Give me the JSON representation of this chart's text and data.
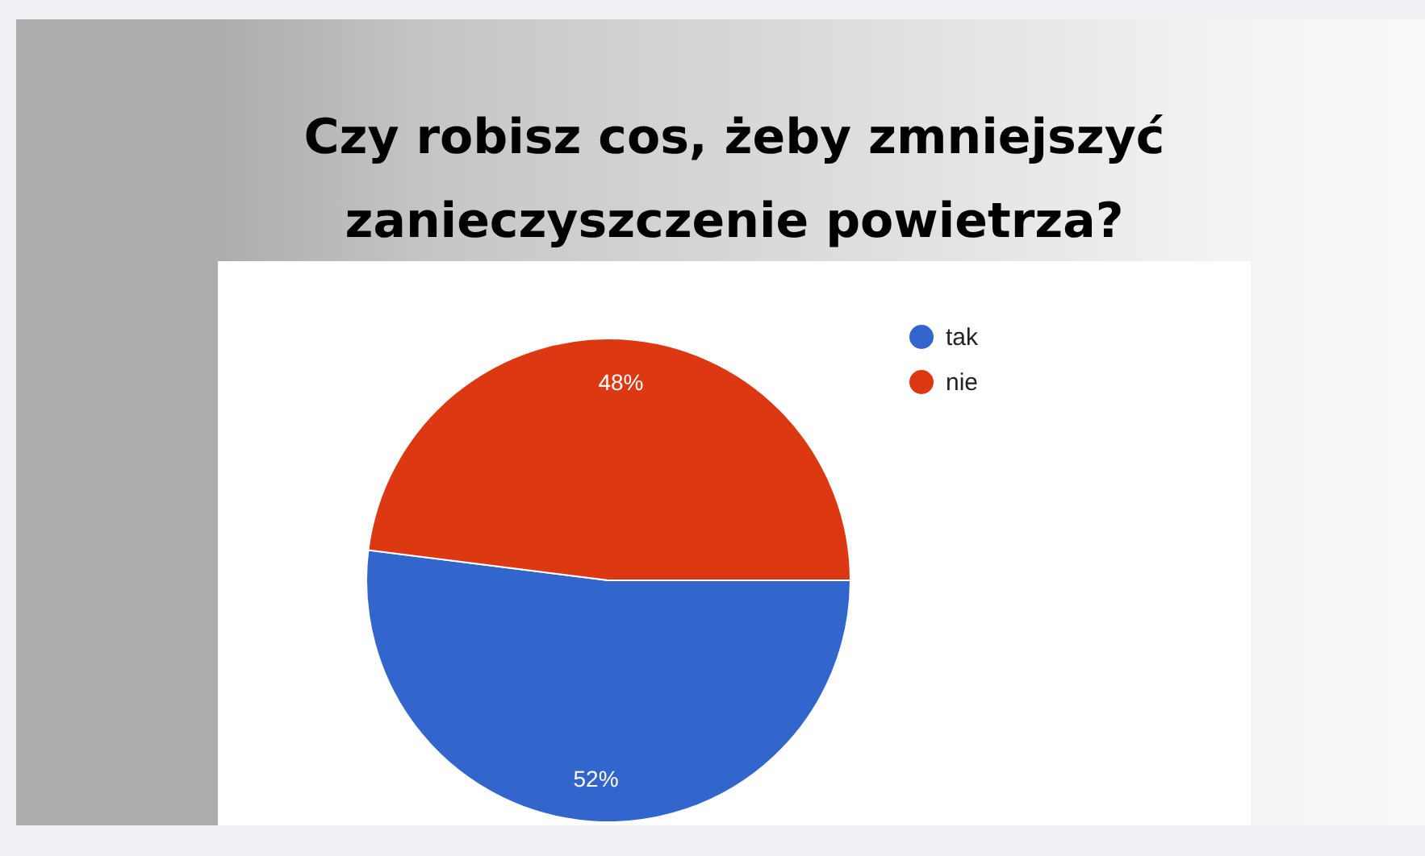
{
  "chart_data": {
    "type": "pie",
    "title": "Czy robisz cos, żeby zmniejszyć zanieczyszczenie powietrza?",
    "categories": [
      "tak",
      "nie"
    ],
    "values": [
      52,
      48
    ],
    "colors": [
      "#3366cc",
      "#dc3912"
    ],
    "value_labels": [
      "52%",
      "48%"
    ],
    "legend": "top right"
  }
}
